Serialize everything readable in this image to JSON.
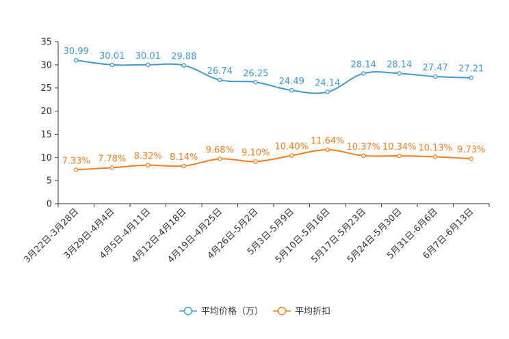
{
  "chart_data": {
    "type": "line",
    "title": "",
    "xlabel": "",
    "ylabel": "",
    "ylim": [
      0,
      35
    ],
    "yticks": [
      0,
      5,
      10,
      15,
      20,
      25,
      30,
      35
    ],
    "grid": false,
    "legend_position": "bottom-center",
    "categories": [
      "3月22日-3月28日",
      "3月29日-4月4日",
      "4月5日-4月11日",
      "4月12日-4月18日",
      "4月19日-4月25日",
      "4月26日-5月2日",
      "5月3日-5月9日",
      "5月10日-5月16日",
      "5月17日-5月23日",
      "5月24日-5月30日",
      "5月31日-6月6日",
      "6月7日-6月13日"
    ],
    "series": [
      {
        "name": "平均价格（万）",
        "color": "#3b9bd0",
        "values": [
          30.99,
          30.01,
          30.01,
          29.88,
          26.74,
          26.25,
          24.49,
          24.14,
          28.14,
          28.14,
          27.47,
          27.21
        ],
        "labels": [
          "30.99",
          "30.01",
          "30.01",
          "29.88",
          "26.74",
          "26.25",
          "24.49",
          "24.14",
          "28.14",
          "28.14",
          "27.47",
          "27.21"
        ]
      },
      {
        "name": "平均折扣",
        "color": "#f07d18",
        "values": [
          7.33,
          7.78,
          8.32,
          8.14,
          9.68,
          9.1,
          10.4,
          11.64,
          10.37,
          10.34,
          10.13,
          9.73
        ],
        "labels": [
          "7.33%",
          "7.78%",
          "8.32%",
          "8.14%",
          "9.68%",
          "9.10%",
          "10.40%",
          "11.64%",
          "10.37%",
          "10.34%",
          "10.13%",
          "9.73%"
        ]
      }
    ]
  }
}
